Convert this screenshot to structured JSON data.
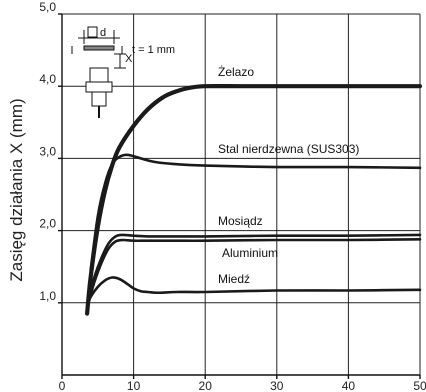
{
  "chart_data": {
    "type": "line",
    "ylabel": "Zasięg działania X (mm)",
    "xlabel": "",
    "xlim": [
      0,
      50
    ],
    "ylim": [
      0,
      5
    ],
    "x_ticks": [
      "0",
      "10",
      "20",
      "30",
      "40",
      "50"
    ],
    "y_ticks": [
      "1,0",
      "2,0",
      "3,0",
      "4,0",
      "5,0"
    ],
    "grid": true,
    "series": [
      {
        "name": "Żelazo",
        "x": [
          3.5,
          4,
          5,
          6,
          7,
          8,
          10,
          12,
          14,
          16,
          18,
          20,
          25,
          30,
          40,
          50
        ],
        "y": [
          0.85,
          1.35,
          2.05,
          2.55,
          2.9,
          3.15,
          3.45,
          3.68,
          3.84,
          3.93,
          3.98,
          4.0,
          4.0,
          4.0,
          4.0,
          4.0
        ]
      },
      {
        "name": "Stal nierdzewna (SUS303)",
        "x": [
          4,
          5,
          6,
          7,
          8,
          9,
          10,
          11,
          13,
          16,
          20,
          30,
          40,
          50
        ],
        "y": [
          1.45,
          2.2,
          2.65,
          2.92,
          3.02,
          3.05,
          3.03,
          3.0,
          2.95,
          2.92,
          2.9,
          2.88,
          2.88,
          2.87
        ]
      },
      {
        "name": "Mosiądz",
        "x": [
          3.7,
          4.5,
          5.5,
          6.5,
          7.5,
          8.5,
          10,
          12,
          16,
          20,
          30,
          40,
          50
        ],
        "y": [
          1.05,
          1.35,
          1.62,
          1.82,
          1.92,
          1.94,
          1.93,
          1.92,
          1.92,
          1.92,
          1.93,
          1.93,
          1.94
        ]
      },
      {
        "name": "Aluminium",
        "x": [
          3.7,
          4.5,
          5.5,
          6.5,
          7.5,
          8.5,
          10,
          12,
          16,
          20,
          30,
          40,
          50
        ],
        "y": [
          1.0,
          1.28,
          1.55,
          1.75,
          1.85,
          1.87,
          1.86,
          1.86,
          1.86,
          1.86,
          1.87,
          1.87,
          1.88
        ]
      },
      {
        "name": "Miedź",
        "x": [
          3.5,
          4,
          5,
          6,
          7,
          8,
          9,
          10,
          11,
          12,
          13,
          14,
          16,
          20,
          30,
          40,
          50
        ],
        "y": [
          0.95,
          1.08,
          1.22,
          1.31,
          1.35,
          1.33,
          1.27,
          1.2,
          1.16,
          1.15,
          1.14,
          1.14,
          1.15,
          1.15,
          1.17,
          1.17,
          1.18
        ]
      }
    ],
    "annotations": [
      "Żelazo",
      "Stal nierdzewna (SUS303)",
      "Mosiądz",
      "Aluminium",
      "Miedź"
    ],
    "inset": {
      "label_d": "d",
      "label_x": "X",
      "label_t": "t = 1 mm"
    },
    "colors": {
      "line": "#1a1a1a",
      "grid": "#222222",
      "background": "#ffffff"
    }
  }
}
